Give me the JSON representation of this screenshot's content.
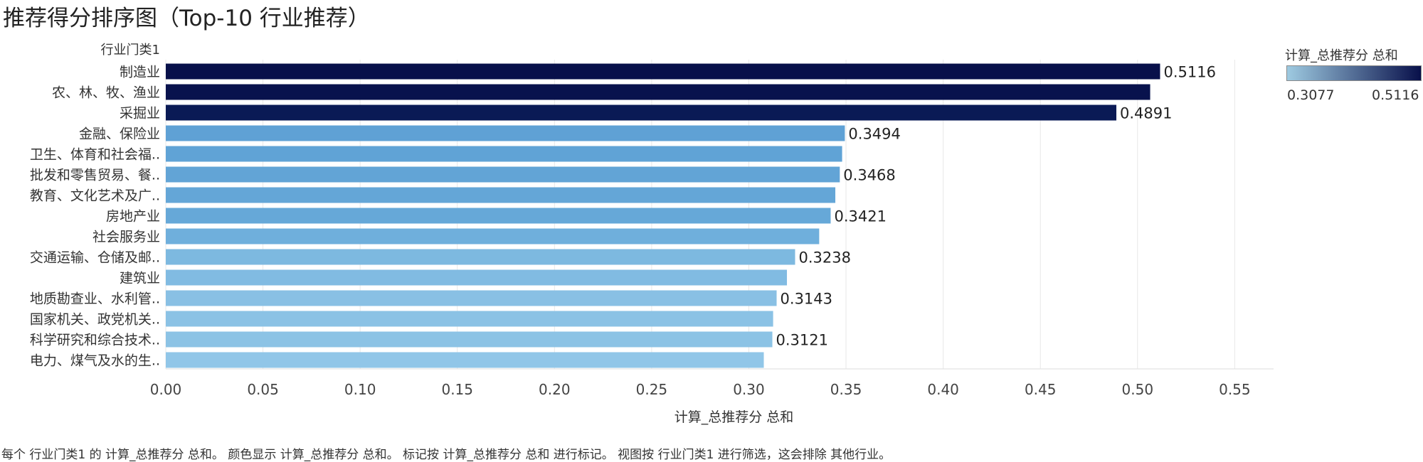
{
  "title": "推荐得分排序图（Top-10 行业推荐）",
  "caption": "每个 行业门类1 的 计算_总推荐分 总和。 颜色显示 计算_总推荐分 总和。 标记按 计算_总推荐分 总和 进行标记。 视图按 行业门类1 进行筛选，这会排除 其他行业。",
  "legend": {
    "title": "计算_总推荐分 总和",
    "min_label": "0.3077",
    "max_label": "0.5116",
    "min": 0.3077,
    "max": 0.5116,
    "color_low": "#9ecae1",
    "color_high": "#08104a"
  },
  "chart_data": {
    "type": "bar",
    "orientation": "horizontal",
    "row_header": "行业门类1",
    "xlabel": "计算_总推荐分 总和",
    "xlim": [
      0,
      0.57
    ],
    "xticks": [
      0,
      0.05,
      0.1,
      0.15,
      0.2,
      0.25,
      0.3,
      0.35,
      0.4,
      0.45,
      0.5,
      0.55
    ],
    "xtick_labels": [
      "0.00",
      "0.05",
      "0.10",
      "0.15",
      "0.20",
      "0.25",
      "0.30",
      "0.35",
      "0.40",
      "0.45",
      "0.50",
      "0.55"
    ],
    "grid": true,
    "categories": [
      "制造业",
      "农、林、牧、渔业",
      "采掘业",
      "金融、保险业",
      "卫生、体育和社会福..",
      "批发和零售贸易、餐..",
      "教育、文化艺术及广..",
      "房地产业",
      "社会服务业",
      "交通运输、仓储及邮..",
      "建筑业",
      "地质勘查业、水利管..",
      "国家机关、政党机关..",
      "科学研究和综合技术..",
      "电力、煤气及水的生.."
    ],
    "values": [
      0.5116,
      0.5065,
      0.4891,
      0.3494,
      0.348,
      0.3468,
      0.3445,
      0.3421,
      0.3362,
      0.3238,
      0.3196,
      0.3143,
      0.3125,
      0.3121,
      0.3077
    ],
    "data_labels": [
      "0.5116",
      "",
      "0.4891",
      "0.3494",
      "",
      "0.3468",
      "",
      "0.3421",
      "",
      "0.3238",
      "",
      "0.3143",
      "",
      "0.3121",
      ""
    ],
    "colors": [
      "#08104a",
      "#08124d",
      "#0a1a55",
      "#5fa1d5",
      "#60a3d6",
      "#62a4d6",
      "#64a6d7",
      "#66a8d8",
      "#6fafdc",
      "#7db9e0",
      "#81bbe2",
      "#89c0e4",
      "#8bc2e5",
      "#8cc3e5",
      "#91c6e8"
    ]
  }
}
